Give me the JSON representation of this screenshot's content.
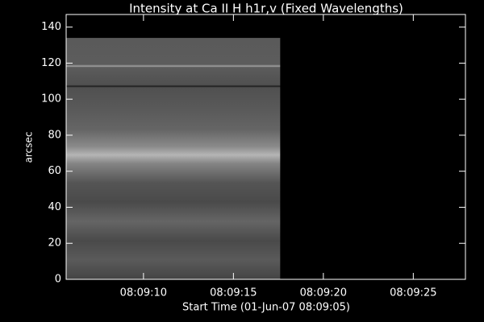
{
  "chart_data": {
    "type": "image",
    "title": "Intensity at Ca II H h1r,v (Fixed Wavelengths)",
    "xlabel": "Start Time (01-Jun-07 08:09:05)",
    "ylabel": "arcsec",
    "xlim": [
      5.7,
      27.9
    ],
    "xticks": [
      {
        "value": 10,
        "label": "08:09:10"
      },
      {
        "value": 15,
        "label": "08:09:15"
      },
      {
        "value": 20,
        "label": "08:09:20"
      },
      {
        "value": 25,
        "label": "08:09:25"
      }
    ],
    "ylim": [
      0,
      147
    ],
    "yticks": [
      0,
      20,
      40,
      60,
      80,
      100,
      120,
      140
    ],
    "image": {
      "xlim": [
        5.7,
        17.6
      ],
      "ylim": [
        0,
        134
      ]
    }
  }
}
